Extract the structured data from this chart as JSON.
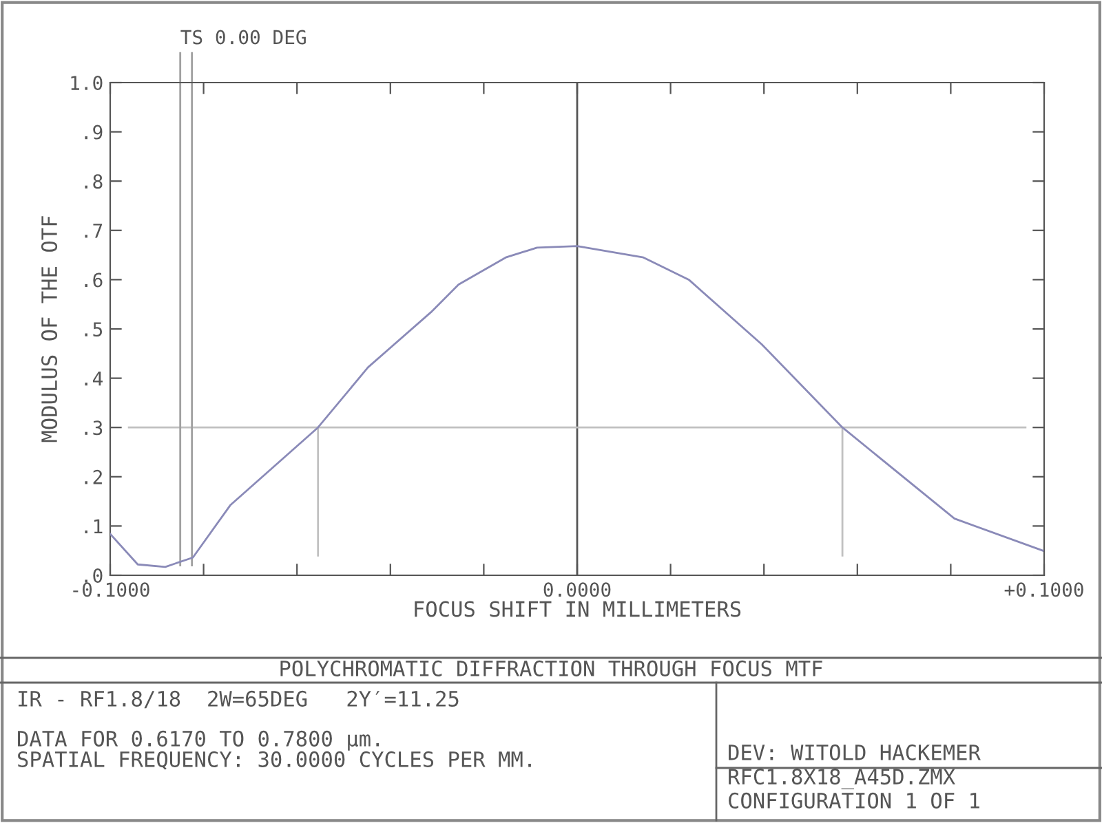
{
  "chart_data": {
    "type": "line",
    "title": "POLYCHROMATIC DIFFRACTION THROUGH FOCUS MTF",
    "xlabel": "FOCUS SHIFT IN MILLIMETERS",
    "ylabel": "MODULUS OF THE OTF",
    "x": [
      -0.1,
      -0.0941,
      -0.0882,
      -0.0823,
      -0.0743,
      -0.0555,
      -0.0448,
      -0.0313,
      -0.0254,
      -0.0153,
      -0.0086,
      0.0,
      0.0142,
      0.0239,
      0.0395,
      0.0568,
      0.0808,
      0.0997
    ],
    "series": [
      {
        "color": "#8a8ab8",
        "values": [
          0.084,
          0.022,
          0.017,
          0.036,
          0.142,
          0.3,
          0.422,
          0.534,
          0.59,
          0.645,
          0.665,
          0.668,
          0.645,
          0.6,
          0.469,
          0.3,
          0.115,
          0.05
        ]
      }
    ],
    "xlim": [
      -0.1,
      0.1
    ],
    "ylim": [
      0,
      1.0
    ],
    "xticks": [
      {
        "value": -0.1,
        "label": "-0.1000"
      },
      {
        "value": -0.08,
        "label": null
      },
      {
        "value": -0.06,
        "label": null
      },
      {
        "value": -0.04,
        "label": null
      },
      {
        "value": -0.02,
        "label": null
      },
      {
        "value": 0.0,
        "label": "0.0000"
      },
      {
        "value": 0.02,
        "label": null
      },
      {
        "value": 0.04,
        "label": null
      },
      {
        "value": 0.06,
        "label": null
      },
      {
        "value": 0.08,
        "label": null
      },
      {
        "value": 0.1,
        "label": "+0.1000"
      }
    ],
    "yticks": [
      {
        "value": 0.0,
        "label": ".0"
      },
      {
        "value": 0.1,
        "label": ".1"
      },
      {
        "value": 0.2,
        "label": ".2"
      },
      {
        "value": 0.3,
        "label": ".3"
      },
      {
        "value": 0.4,
        "label": ".4"
      },
      {
        "value": 0.5,
        "label": ".5"
      },
      {
        "value": 0.6,
        "label": ".6"
      },
      {
        "value": 0.7,
        "label": ".7"
      },
      {
        "value": 0.8,
        "label": ".8"
      },
      {
        "value": 0.9,
        "label": ".9"
      },
      {
        "value": 1.0,
        "label": "1.0"
      }
    ],
    "ref_lines": [
      {
        "axis": "x",
        "value": 0.0,
        "label": null,
        "color": "#555555"
      },
      {
        "axis": "y",
        "value": 0.3,
        "label": null,
        "color": "#c0c0c0"
      },
      {
        "axis": "x",
        "value": -0.0555,
        "label": null,
        "color": "#c0c0c0"
      },
      {
        "axis": "x",
        "value": 0.0568,
        "label": null,
        "color": "#c0c0c0"
      },
      {
        "axis": "x",
        "value": -0.085,
        "label": "TS 0.00 DEG",
        "color": "#a0a0a0"
      },
      {
        "axis": "x",
        "value": -0.0825,
        "label": null,
        "color": "#a0a0a0"
      }
    ],
    "annotations": [
      "IR - RF1.8/18  2W=65DEG   2Y′=11.25",
      "DATA FOR 0.6170 TO 0.7800 µm.",
      "SPATIAL FREQUENCY: 30.0000 CYCLES PER MM.",
      "DEV: WITOLD HACKEMER",
      "RFC1.8X18_A45D.ZMX",
      "CONFIGURATION 1 OF 1"
    ],
    "grid": false,
    "legend": false,
    "marker": "none",
    "line_style": "solid"
  }
}
